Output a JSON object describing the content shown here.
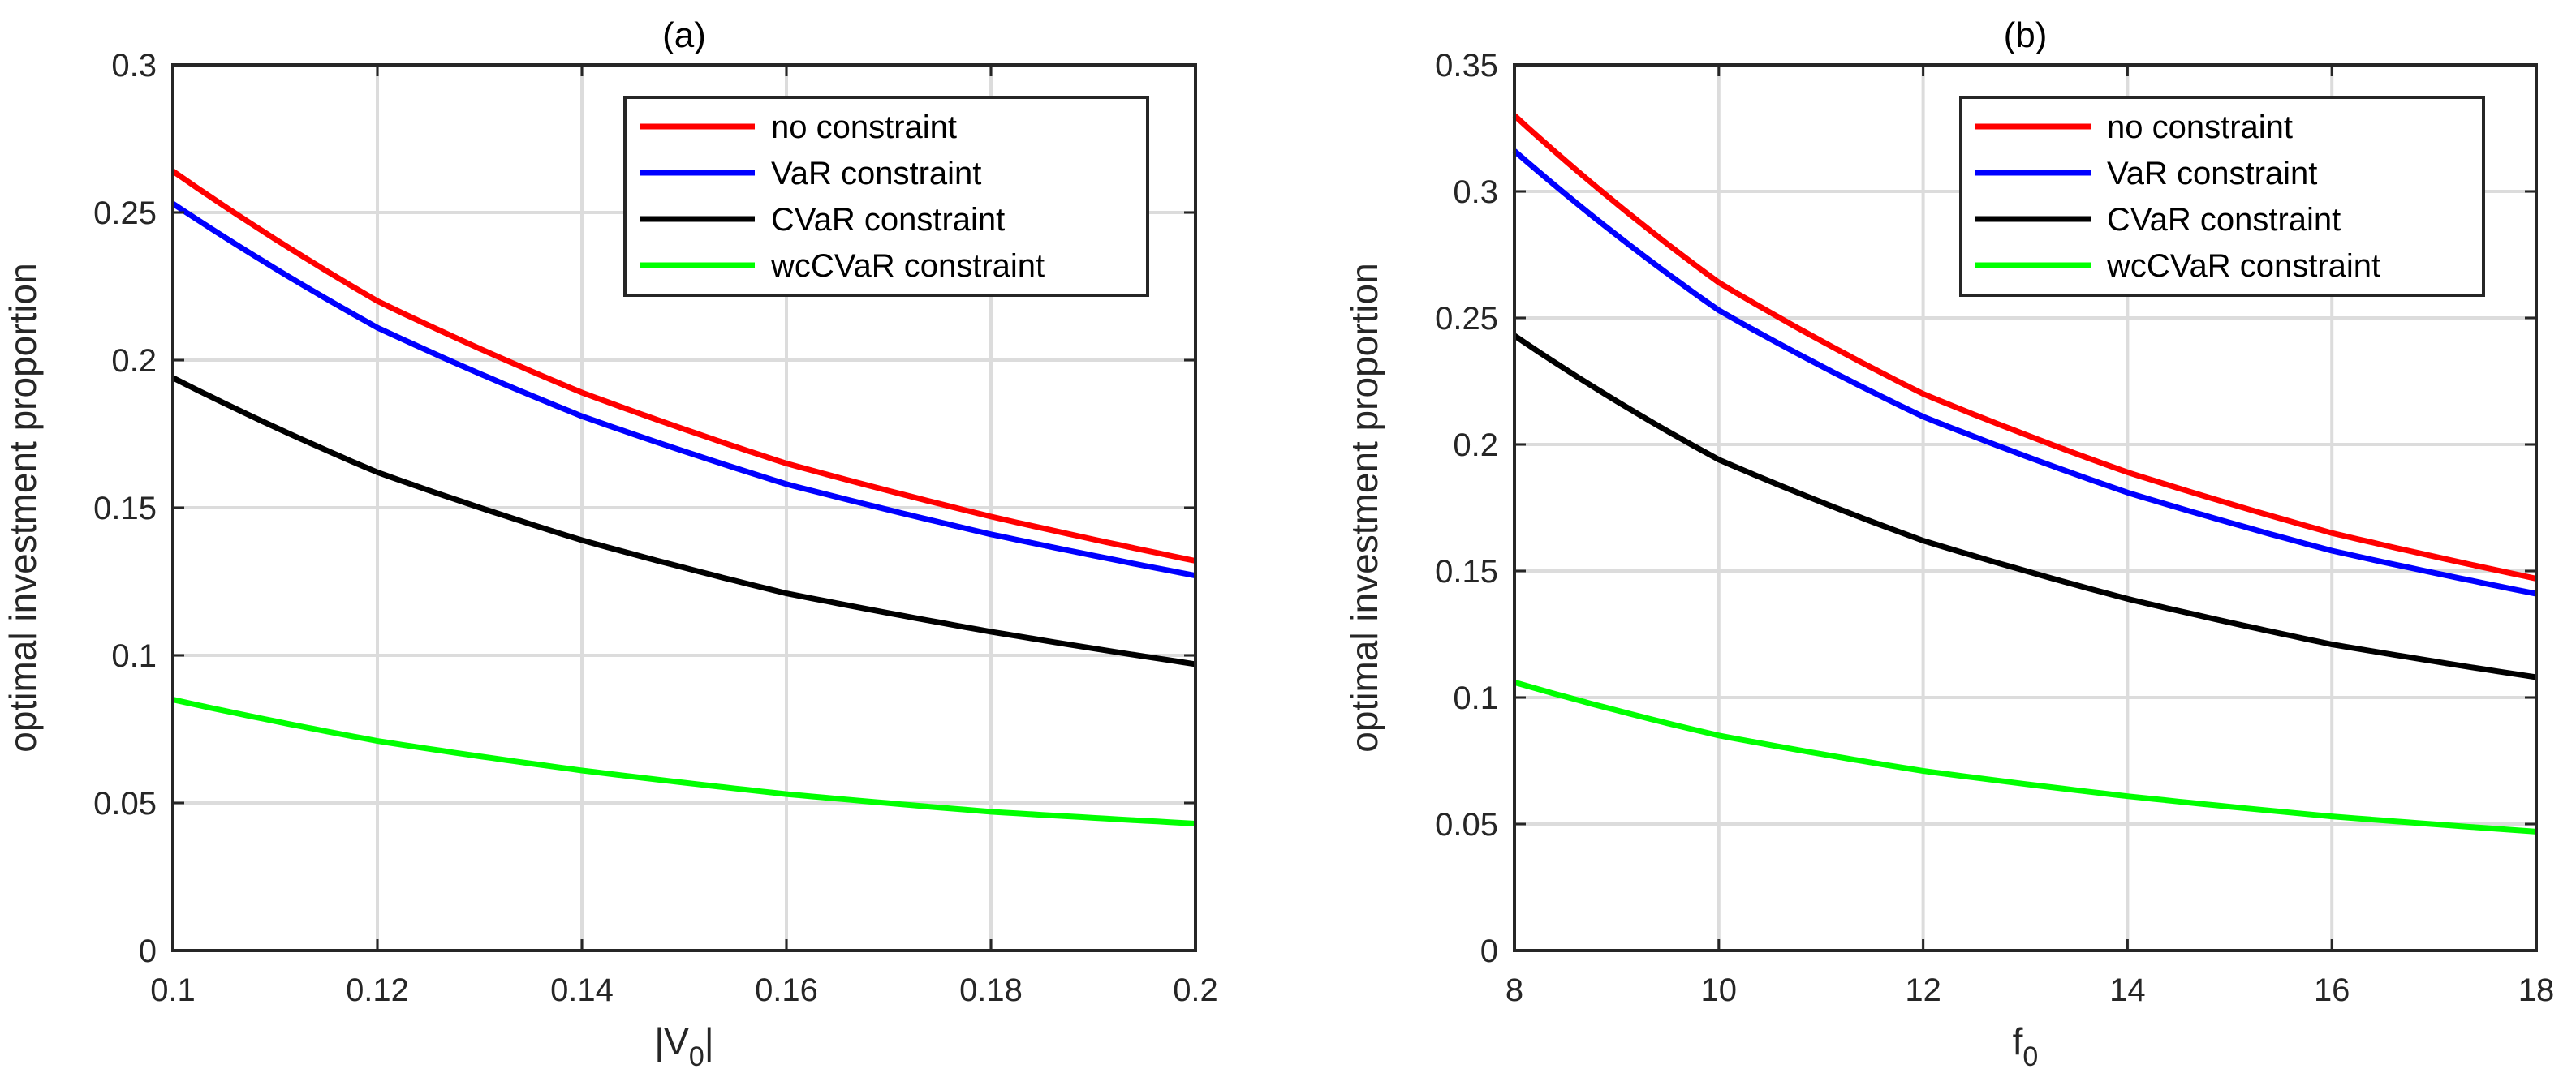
{
  "chart_data": [
    {
      "type": "line",
      "title": "(a)",
      "xlabel": "|V_0|",
      "xlabel_main": "|V",
      "xlabel_sub": "0",
      "xlabel_tail": "|",
      "ylabel": "optimal investment proportion",
      "xlim": [
        0.1,
        0.2
      ],
      "ylim": [
        0,
        0.3
      ],
      "xticks": [
        0.1,
        0.12,
        0.14,
        0.16,
        0.18,
        0.2
      ],
      "xtick_labels": [
        "0.1",
        "0.12",
        "0.14",
        "0.16",
        "0.18",
        "0.2"
      ],
      "yticks": [
        0,
        0.05,
        0.1,
        0.15,
        0.2,
        0.25,
        0.3
      ],
      "ytick_labels": [
        "0",
        "0.05",
        "0.1",
        "0.15",
        "0.2",
        "0.25",
        "0.3"
      ],
      "grid": true,
      "legend_position": "top-right",
      "x": [
        0.1,
        0.12,
        0.14,
        0.16,
        0.18,
        0.2
      ],
      "series": [
        {
          "name": "no constraint",
          "color": "#ff0000",
          "values": [
            0.264,
            0.22,
            0.189,
            0.165,
            0.147,
            0.132
          ]
        },
        {
          "name": "VaR constraint",
          "color": "#0000ff",
          "values": [
            0.253,
            0.211,
            0.181,
            0.158,
            0.141,
            0.127
          ]
        },
        {
          "name": "CVaR constraint",
          "color": "#000000",
          "values": [
            0.194,
            0.162,
            0.139,
            0.121,
            0.108,
            0.097
          ]
        },
        {
          "name": "wcCVaR constraint",
          "color": "#00ff00",
          "values": [
            0.085,
            0.071,
            0.061,
            0.053,
            0.047,
            0.043
          ]
        }
      ]
    },
    {
      "type": "line",
      "title": "(b)",
      "xlabel": "f_0",
      "xlabel_main": "f",
      "xlabel_sub": "0",
      "xlabel_tail": "",
      "ylabel": "optimal investment proportion",
      "xlim": [
        8,
        18
      ],
      "ylim": [
        0,
        0.35
      ],
      "xticks": [
        8,
        10,
        12,
        14,
        16,
        18
      ],
      "xtick_labels": [
        "8",
        "10",
        "12",
        "14",
        "16",
        "18"
      ],
      "yticks": [
        0,
        0.05,
        0.1,
        0.15,
        0.2,
        0.25,
        0.3,
        0.35
      ],
      "ytick_labels": [
        "0",
        "0.05",
        "0.1",
        "0.15",
        "0.2",
        "0.25",
        "0.3",
        "0.35"
      ],
      "grid": true,
      "legend_position": "top-right",
      "x": [
        8,
        10,
        12,
        14,
        16,
        18
      ],
      "series": [
        {
          "name": "no constraint",
          "color": "#ff0000",
          "values": [
            0.33,
            0.264,
            0.22,
            0.189,
            0.165,
            0.147
          ]
        },
        {
          "name": "VaR constraint",
          "color": "#0000ff",
          "values": [
            0.316,
            0.253,
            0.211,
            0.181,
            0.158,
            0.141
          ]
        },
        {
          "name": "CVaR constraint",
          "color": "#000000",
          "values": [
            0.243,
            0.194,
            0.162,
            0.139,
            0.121,
            0.108
          ]
        },
        {
          "name": "wcCVaR constraint",
          "color": "#00ff00",
          "values": [
            0.106,
            0.085,
            0.071,
            0.061,
            0.053,
            0.047
          ]
        }
      ]
    }
  ]
}
